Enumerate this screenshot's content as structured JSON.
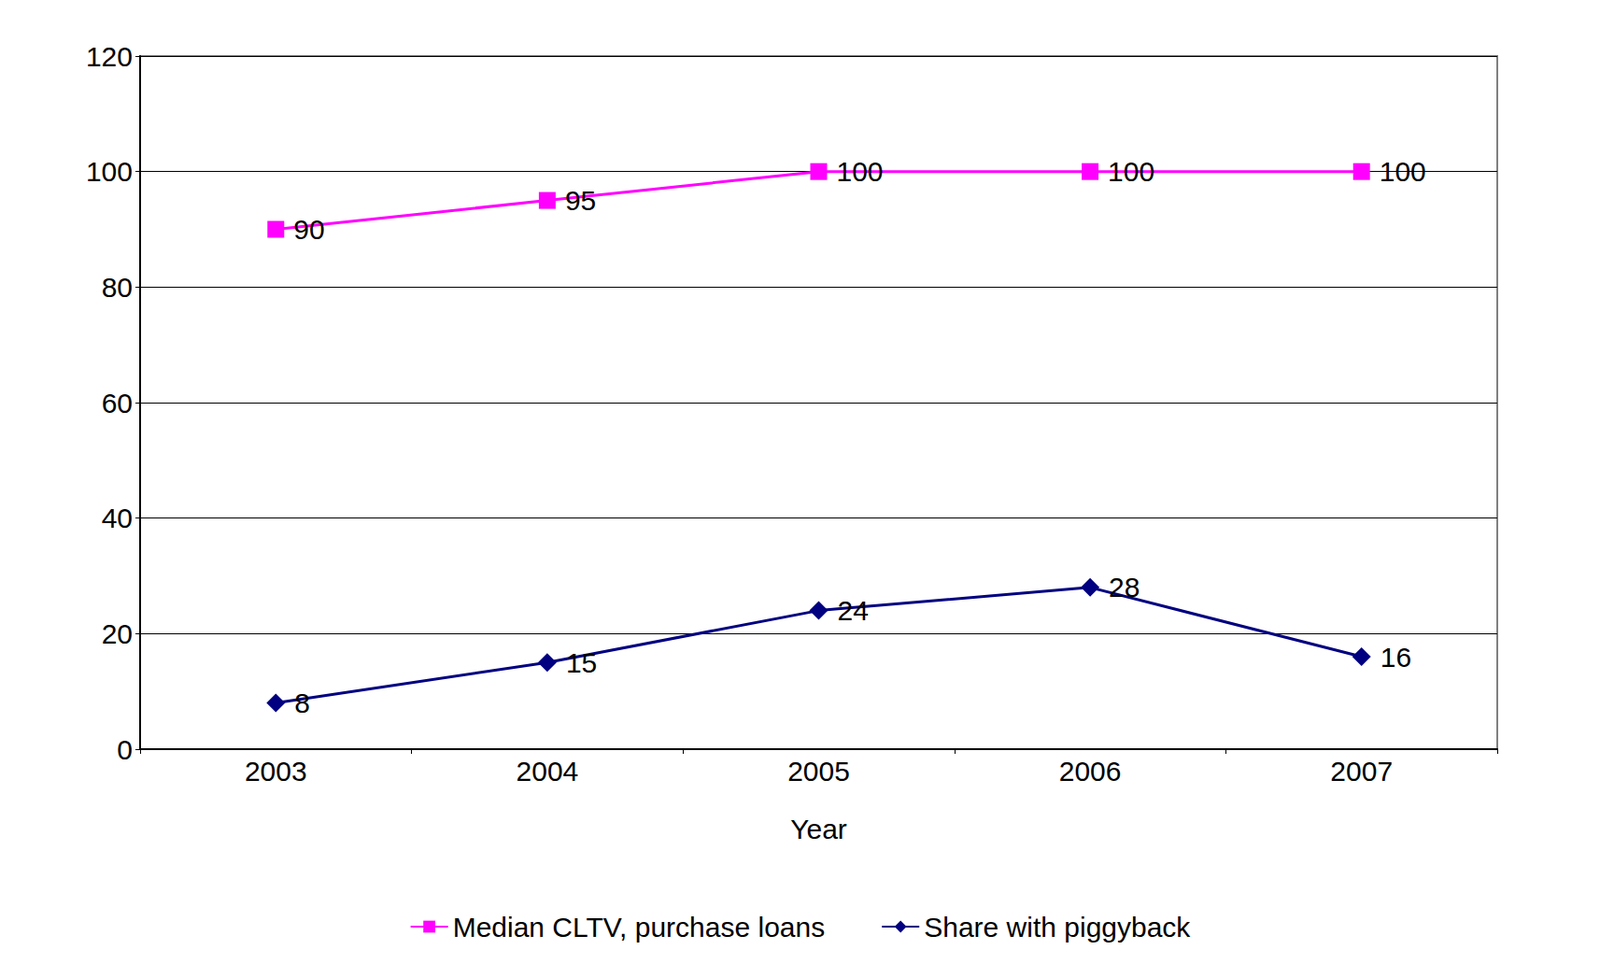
{
  "chart_data": {
    "type": "line",
    "x_label": "Year",
    "categories": [
      "2003",
      "2004",
      "2005",
      "2006",
      "2007"
    ],
    "series": [
      {
        "name": "Median CLTV, purchase loans",
        "color": "#ff00ff",
        "marker": "square",
        "values": [
          90,
          95,
          100,
          100,
          100
        ]
      },
      {
        "name": "Share with piggyback",
        "color": "#000080",
        "marker": "diamond",
        "values": [
          8,
          15,
          24,
          28,
          16
        ]
      }
    ],
    "ylim": [
      0,
      120
    ],
    "yticks": [
      0,
      20,
      40,
      60,
      80,
      100,
      120
    ],
    "grid": true,
    "legend": "bottom",
    "data_labels": true
  }
}
